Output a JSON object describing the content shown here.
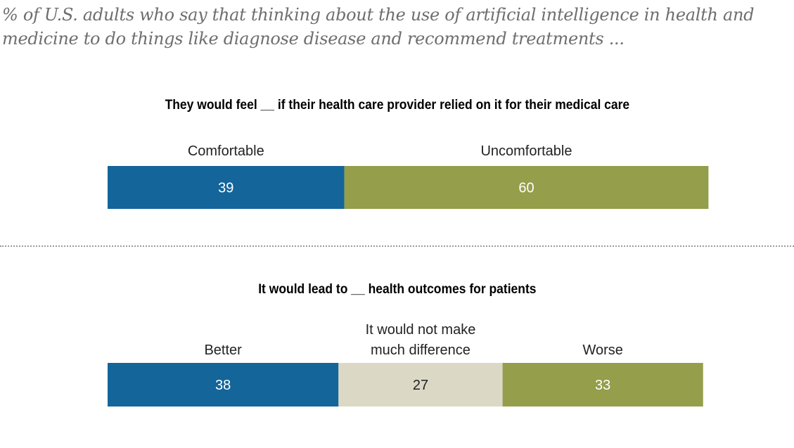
{
  "subtitle": "% of U.S. adults who say that thinking about the use of artificial intelligence in health and medicine to do things like diagnose disease and recommend treatments ...",
  "colors": {
    "blue": "#13659a",
    "olive": "#949e4b",
    "beige": "#dbd9c6",
    "divider": "#9a9a9a"
  },
  "chart_data": [
    {
      "type": "bar",
      "orientation": "horizontal-stacked",
      "title": "They would feel __ if their health care provider relied on it for their medical care",
      "categories": [
        "Comfortable",
        "Uncomfortable"
      ],
      "values": [
        39,
        60
      ],
      "value_labels": [
        "39",
        "60"
      ],
      "colors": [
        "#13659a",
        "#949e4b"
      ],
      "label_colors": [
        "#ffffff",
        "#ffffff"
      ],
      "xlim": [
        0,
        100
      ]
    },
    {
      "type": "bar",
      "orientation": "horizontal-stacked",
      "title": "It would lead to __ health outcomes for patients",
      "categories": [
        "Better",
        "It would not make much difference",
        "Worse"
      ],
      "category_lines": [
        [
          "Better"
        ],
        [
          "It would not make",
          "much difference"
        ],
        [
          "Worse"
        ]
      ],
      "values": [
        38,
        27,
        33
      ],
      "value_labels": [
        "38",
        "27",
        "33"
      ],
      "colors": [
        "#13659a",
        "#dbd9c6",
        "#949e4b"
      ],
      "label_colors": [
        "#ffffff",
        "#222222",
        "#ffffff"
      ],
      "xlim": [
        0,
        100
      ]
    }
  ]
}
